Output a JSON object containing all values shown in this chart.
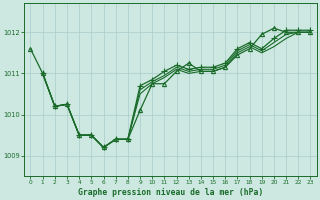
{
  "background_color": "#cce8e0",
  "grid_color": "#aacccc",
  "line_color": "#1a6b2a",
  "xlabel": "Graphe pression niveau de la mer (hPa)",
  "ylim": [
    1008.5,
    1012.7
  ],
  "xlim": [
    -0.5,
    23.5
  ],
  "yticks": [
    1009,
    1010,
    1011,
    1012
  ],
  "xticks": [
    0,
    1,
    2,
    3,
    4,
    5,
    6,
    7,
    8,
    9,
    10,
    11,
    12,
    13,
    14,
    15,
    16,
    17,
    18,
    19,
    20,
    21,
    22,
    23
  ],
  "series": [
    {
      "x": [
        0,
        1,
        2,
        3,
        4,
        5,
        6,
        7,
        8,
        9,
        10,
        11,
        12,
        13,
        14,
        15,
        16,
        17,
        18,
        19,
        20,
        21,
        22,
        23
      ],
      "y": [
        1011.6,
        1011.0,
        1010.2,
        1010.25,
        1009.5,
        1009.5,
        1009.2,
        1009.4,
        1009.4,
        1010.1,
        1010.75,
        1010.75,
        1011.05,
        1011.25,
        1011.05,
        1011.05,
        1011.15,
        1011.45,
        1011.6,
        1011.95,
        1012.1,
        1012.0,
        1012.0,
        1012.0
      ],
      "marker": "^",
      "markersize": 3,
      "linewidth": 0.9
    },
    {
      "x": [
        1,
        2,
        3,
        4,
        5,
        6,
        7,
        8,
        9,
        10,
        11,
        12,
        13,
        14,
        15,
        16,
        17,
        18,
        19,
        20,
        21,
        22,
        23
      ],
      "y": [
        1011.0,
        1010.2,
        1010.25,
        1009.5,
        1009.5,
        1009.2,
        1009.4,
        1009.4,
        1010.5,
        1010.75,
        1010.9,
        1011.1,
        1011.0,
        1011.05,
        1011.05,
        1011.15,
        1011.5,
        1011.65,
        1011.5,
        1011.65,
        1011.85,
        1012.0,
        1012.0
      ],
      "marker": null,
      "markersize": 0,
      "linewidth": 0.8
    },
    {
      "x": [
        1,
        2,
        3,
        4,
        5,
        6,
        7,
        8,
        9,
        10,
        11,
        12,
        13,
        14,
        15,
        16,
        17,
        18,
        19,
        20,
        21,
        22,
        23
      ],
      "y": [
        1011.0,
        1010.2,
        1010.25,
        1009.5,
        1009.5,
        1009.2,
        1009.4,
        1009.4,
        1010.6,
        1010.8,
        1010.95,
        1011.15,
        1011.05,
        1011.1,
        1011.1,
        1011.2,
        1011.55,
        1011.7,
        1011.55,
        1011.75,
        1011.95,
        1012.0,
        1012.0
      ],
      "marker": null,
      "markersize": 0,
      "linewidth": 0.8
    },
    {
      "x": [
        1,
        2,
        3,
        4,
        5,
        6,
        7,
        8,
        9,
        10,
        11,
        12,
        13,
        14,
        15,
        16,
        17,
        18,
        19,
        20,
        21,
        22,
        23
      ],
      "y": [
        1011.0,
        1010.2,
        1010.25,
        1009.5,
        1009.5,
        1009.2,
        1009.4,
        1009.4,
        1010.7,
        1010.85,
        1011.05,
        1011.2,
        1011.1,
        1011.15,
        1011.15,
        1011.25,
        1011.6,
        1011.75,
        1011.6,
        1011.85,
        1012.05,
        1012.05,
        1012.05
      ],
      "marker": "+",
      "markersize": 4,
      "linewidth": 0.9
    }
  ]
}
